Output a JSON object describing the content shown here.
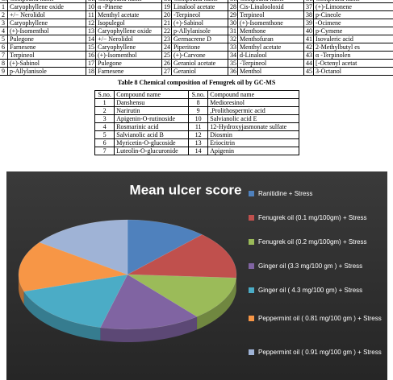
{
  "table7": {
    "header": [
      "S.no.",
      "Compound name",
      "S.no.",
      "Compound name",
      "S.no.",
      "Compound name",
      "S.no.",
      "Compound name",
      "S.no.",
      "Compound name"
    ],
    "rows": [
      [
        "1",
        "Caryophyllene oxide",
        "10",
        "α -Pinene",
        "19",
        "Linalool acetate",
        "28",
        "Cis-Linalooloxid",
        "37",
        "(+)-Limonene"
      ],
      [
        "2",
        "+/− Nerolidol",
        "11",
        "Menthyl acetate",
        "20",
        "-Terpineol",
        "29",
        "Terpineol",
        "38",
        "p-Cineole"
      ],
      [
        "3",
        "Caryophyllene",
        "12",
        "Isopulegol",
        "21",
        "(+)-Sabinol",
        "30",
        "(+)-Isomenthone",
        "39",
        "-Ocimene"
      ],
      [
        "4",
        "(+)-Isomenthol",
        "13",
        "Caryophyllene oxide",
        "22",
        "p-Allylanisole",
        "31",
        "Menthone",
        "40",
        "p-Cymene"
      ],
      [
        "5",
        "Pulegone",
        "14",
        "+/− Nerolidol",
        "23",
        "Germacrene D",
        "32",
        "Menthofuran",
        "41",
        "Isovaleric acid"
      ],
      [
        "6",
        "Farnesene",
        "15",
        "Caryophyllene",
        "24",
        "Piperitone",
        "33",
        "Menthyl acetate",
        "42",
        "2-Methylbutyl es"
      ],
      [
        "7",
        "Terpineol",
        "16",
        "(+)-Isomenthol",
        "25",
        "(+)-Carvone",
        "34",
        "d-Linalool",
        "43",
        "α -Terpinolen"
      ],
      [
        "8",
        "(+)-Sabinol",
        "17",
        "Pulegone",
        "26",
        "Geraniol acetate",
        "35",
        "-Terpineol",
        "44",
        "[-Octenyl acetat"
      ],
      [
        "9",
        "p-Allylanisole",
        "18",
        "Farnesene",
        "27",
        "Geraniol",
        "36",
        "Menthol",
        "45",
        "3-Octanol"
      ]
    ]
  },
  "table8": {
    "title": "Table 8 Chemical composition of Fenugrek oil by GC-MS",
    "header": [
      "S.no.",
      "Compound name",
      "S.no.",
      "Compound name"
    ],
    "rows": [
      [
        "1",
        "Danshensu",
        "8",
        "Medioresinol"
      ],
      [
        "2",
        "Narirutin",
        "9",
        ",Prolithospermic acid"
      ],
      [
        "3",
        "Apigenin-O-rutinoside",
        "10",
        "Salvianolic acid E"
      ],
      [
        "4",
        "Rosmarinic acid",
        "11",
        "12-Hydroxyjasmonate sulfate"
      ],
      [
        "5",
        "Salvianolic acid B",
        "12",
        "Diosmin"
      ],
      [
        "6",
        "Myricetin-O-glucoside",
        "13",
        "Eriocitrin"
      ],
      [
        "7",
        "Luteolin-O-glucuronide",
        "14",
        "Apigenin"
      ]
    ]
  },
  "chart_data": {
    "type": "pie",
    "title": "Mean ulcer score",
    "categories": [
      "Ranitidine + Stress",
      "Fenugrek oil (0.1 mg/100gm) + Stress",
      "Fenugrek oil (0.2 mg/100gm) + Stress",
      "Ginger oil (3.3 mg/100 gm ) + Stress",
      "Ginger oil ( 4.3 mg/100 gm) + Stress",
      "Peppermint oil ( 0.81 mg/100 gm ) + Stress",
      "Peppermint oil ( 0.91 mg/100 gm ) + Stress"
    ],
    "values": [
      12,
      14,
      13,
      15,
      16,
      15,
      15
    ],
    "colors": [
      "#4f81bd",
      "#c0504d",
      "#9bbb59",
      "#8064a2",
      "#4bacc6",
      "#f79646",
      "#9fb3d6"
    ]
  }
}
